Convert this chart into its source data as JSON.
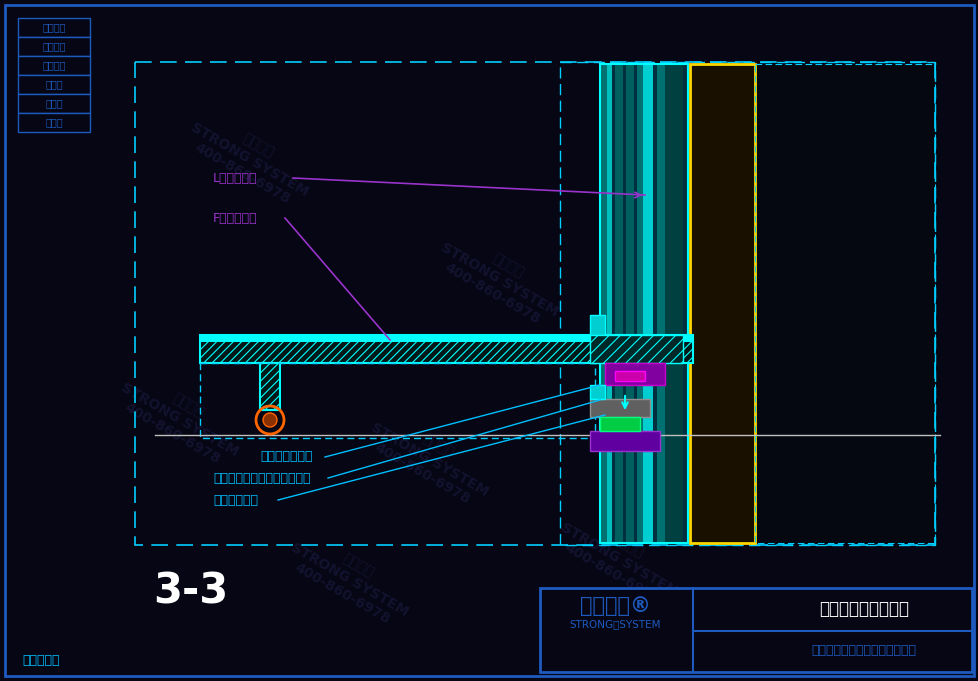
{
  "bg_color": "#060614",
  "border_color": "#1E5BBF",
  "dash_color": "#00CFFF",
  "cyan_color": "#00FFFF",
  "teal_color": "#008B8B",
  "yellow_color": "#FFD700",
  "green_color": "#00FF7F",
  "magenta_color": "#FF00FF",
  "purple_color": "#9933CC",
  "white_color": "#FFFFFF",
  "gray_color": "#808080",
  "orange_color": "#FF6600",
  "label_color": "#00BFFF",
  "hatch_fg": "#00CED1",
  "title_text": "3-3",
  "labels": [
    "L型精制锂柱",
    "F型精制锂柱",
    "铝合金型材端头",
    "公母螺栋（专利、连续栋接）",
    "橡胶隔热垫块"
  ],
  "legend_items": [
    "安全防火",
    "环保节能",
    "超级防腔",
    "大跨度",
    "大通透",
    "更精细"
  ],
  "bottom_left_text": "专利产品！",
  "project_name1": "阿那亚雾灵山图书馆",
  "project_name2": "西创金属科技（江苏）有限公司",
  "company_logo": "西创系统®",
  "company_sub": "STRONG｜SYSTEM"
}
